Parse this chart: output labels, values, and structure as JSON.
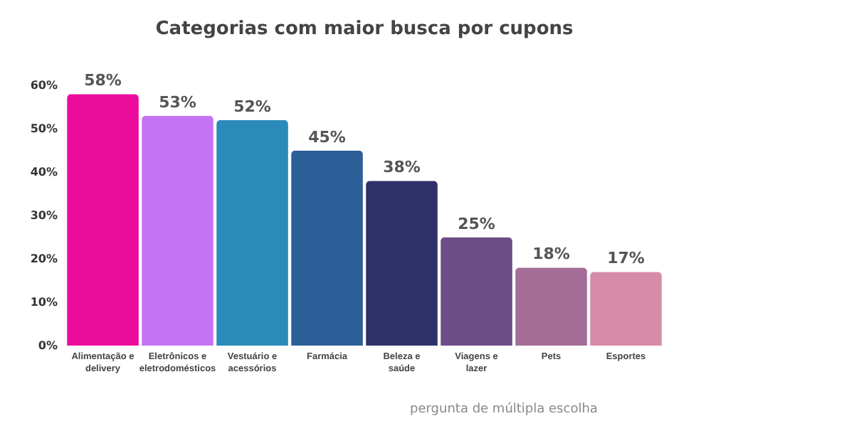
{
  "chart_data": {
    "type": "bar",
    "title": "Categorias com maior busca por cupons",
    "categories": [
      "Alimentação e delivery",
      "Eletrônicos e eletrodomésticos",
      "Vestuário e acessórios",
      "Farmácia",
      "Beleza e saúde",
      "Viagens e lazer",
      "Pets",
      "Esportes"
    ],
    "values": [
      58,
      53,
      52,
      45,
      38,
      25,
      18,
      17
    ],
    "colors": [
      "#ec0c9c",
      "#c573f5",
      "#2a8bbb",
      "#2c5f98",
      "#2e3169",
      "#6e4c85",
      "#a36d98",
      "#d68ca7"
    ],
    "value_labels": [
      "58%",
      "53%",
      "52%",
      "45%",
      "38%",
      "25%",
      "18%",
      "17%"
    ],
    "ylim": [
      0,
      60
    ],
    "yticks": [
      {
        "value": 0,
        "label": "0%"
      },
      {
        "value": 10,
        "label": "10%"
      },
      {
        "value": 20,
        "label": "20%"
      },
      {
        "value": 30,
        "label": "30%"
      },
      {
        "value": 40,
        "label": "40%"
      },
      {
        "value": 50,
        "label": "50%"
      },
      {
        "value": 60,
        "label": "60%"
      }
    ],
    "grid": false,
    "annotations": [
      "pergunta de múltipla escolha"
    ]
  }
}
